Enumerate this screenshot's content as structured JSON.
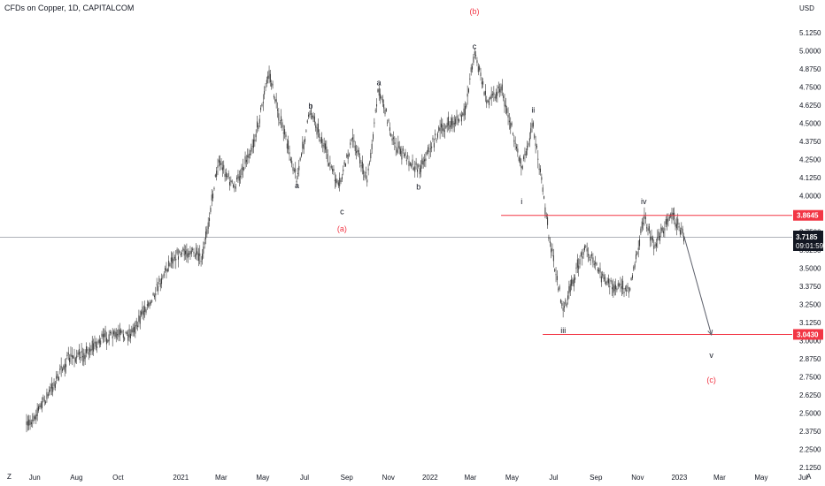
{
  "header": {
    "title": "CFDs on Copper, 1D, CAPITALCOM"
  },
  "price_scale": {
    "currency": "USD",
    "current_price": "3.7185",
    "countdown": "09:01:59",
    "resistance_label": "3.8645",
    "support_label": "3.0430"
  },
  "corner_controls": {
    "left": "Z",
    "right": "A"
  },
  "colors": {
    "candles": "#3a3a3a",
    "level_line": "#f23645",
    "badge": "#f23645",
    "current_badge": "#131722",
    "wave_red": "#f23645",
    "wave_dark": "#131722"
  },
  "chart_data": {
    "type": "candlestick",
    "symbol": "CFDs on Copper",
    "interval": "1D",
    "ylim": [
      2.125,
      5.125
    ],
    "y_ticks": [
      "2.1250",
      "2.2500",
      "2.3750",
      "2.5000",
      "2.6250",
      "2.7500",
      "2.8750",
      "3.0000",
      "3.1250",
      "3.2500",
      "3.3750",
      "3.5000",
      "3.6250",
      "3.7500",
      "4.0000",
      "4.1250",
      "4.2500",
      "4.3750",
      "4.5000",
      "4.6250",
      "4.7500",
      "4.8750",
      "5.0000",
      "5.1250"
    ],
    "x_ticks": [
      {
        "label": "Jun",
        "date": "2020-06-01"
      },
      {
        "label": "Aug",
        "date": "2020-08-01"
      },
      {
        "label": "Oct",
        "date": "2020-10-01"
      },
      {
        "label": "2021",
        "date": "2021-01-01"
      },
      {
        "label": "Mar",
        "date": "2021-03-01"
      },
      {
        "label": "May",
        "date": "2021-05-01"
      },
      {
        "label": "Jul",
        "date": "2021-07-01"
      },
      {
        "label": "Sep",
        "date": "2021-09-01"
      },
      {
        "label": "Nov",
        "date": "2021-11-01"
      },
      {
        "label": "2022",
        "date": "2022-01-01"
      },
      {
        "label": "Mar",
        "date": "2022-03-01"
      },
      {
        "label": "May",
        "date": "2022-05-01"
      },
      {
        "label": "Jul",
        "date": "2022-07-01"
      },
      {
        "label": "Sep",
        "date": "2022-09-01"
      },
      {
        "label": "Nov",
        "date": "2022-11-01"
      },
      {
        "label": "2023",
        "date": "2023-01-01"
      },
      {
        "label": "Mar",
        "date": "2023-03-01"
      },
      {
        "label": "May",
        "date": "2023-05-01"
      },
      {
        "label": "Jul",
        "date": "2023-07-01"
      }
    ],
    "price_path": [
      {
        "date": "2020-05-20",
        "price": 2.4
      },
      {
        "date": "2020-06-20",
        "price": 2.62
      },
      {
        "date": "2020-07-20",
        "price": 2.88
      },
      {
        "date": "2020-08-10",
        "price": 2.9
      },
      {
        "date": "2020-09-10",
        "price": 3.02
      },
      {
        "date": "2020-10-20",
        "price": 3.05
      },
      {
        "date": "2020-11-20",
        "price": 3.3
      },
      {
        "date": "2020-12-20",
        "price": 3.58
      },
      {
        "date": "2021-01-15",
        "price": 3.62
      },
      {
        "date": "2021-02-01",
        "price": 3.55
      },
      {
        "date": "2021-02-25",
        "price": 4.25
      },
      {
        "date": "2021-03-20",
        "price": 4.05
      },
      {
        "date": "2021-04-20",
        "price": 4.4
      },
      {
        "date": "2021-05-10",
        "price": 4.85
      },
      {
        "date": "2021-05-25",
        "price": 4.55
      },
      {
        "date": "2021-06-20",
        "price": 4.12
      },
      {
        "date": "2021-07-10",
        "price": 4.6
      },
      {
        "date": "2021-08-20",
        "price": 4.05
      },
      {
        "date": "2021-09-10",
        "price": 4.4
      },
      {
        "date": "2021-10-01",
        "price": 4.1
      },
      {
        "date": "2021-10-18",
        "price": 4.75
      },
      {
        "date": "2021-11-10",
        "price": 4.35
      },
      {
        "date": "2021-12-15",
        "price": 4.18
      },
      {
        "date": "2022-01-15",
        "price": 4.45
      },
      {
        "date": "2022-02-20",
        "price": 4.55
      },
      {
        "date": "2022-03-07",
        "price": 5.0
      },
      {
        "date": "2022-03-25",
        "price": 4.65
      },
      {
        "date": "2022-04-15",
        "price": 4.75
      },
      {
        "date": "2022-05-15",
        "price": 4.2
      },
      {
        "date": "2022-06-01",
        "price": 4.5
      },
      {
        "date": "2022-06-25",
        "price": 3.7
      },
      {
        "date": "2022-07-15",
        "price": 3.2
      },
      {
        "date": "2022-08-15",
        "price": 3.65
      },
      {
        "date": "2022-09-15",
        "price": 3.4
      },
      {
        "date": "2022-10-20",
        "price": 3.35
      },
      {
        "date": "2022-11-10",
        "price": 3.85
      },
      {
        "date": "2022-11-25",
        "price": 3.65
      },
      {
        "date": "2022-12-20",
        "price": 3.88
      },
      {
        "date": "2023-01-08",
        "price": 3.72
      }
    ],
    "projection": [
      {
        "date": "2023-01-08",
        "price": 3.72
      },
      {
        "date": "2023-02-17",
        "price": 3.04
      }
    ],
    "current_price": 3.7185,
    "horizontal_levels": [
      {
        "price": 3.8645,
        "from": "2022-04-15",
        "label": "3.8645"
      },
      {
        "price": 3.043,
        "from": "2022-06-15",
        "label": "3.0430"
      }
    ],
    "wave_labels": [
      {
        "text": "(a)",
        "date": "2021-08-25",
        "price": 3.77,
        "color": "red"
      },
      {
        "text": "(b)",
        "date": "2022-03-07",
        "price": 5.27,
        "color": "red"
      },
      {
        "text": "(c)",
        "date": "2023-02-17",
        "price": 2.73,
        "color": "red"
      },
      {
        "text": "a",
        "date": "2021-06-20",
        "price": 4.07,
        "color": "dark"
      },
      {
        "text": "b",
        "date": "2021-07-10",
        "price": 4.62,
        "color": "dark"
      },
      {
        "text": "c",
        "date": "2021-08-25",
        "price": 3.89,
        "color": "dark"
      },
      {
        "text": "a",
        "date": "2021-10-18",
        "price": 4.78,
        "color": "dark"
      },
      {
        "text": "b",
        "date": "2021-12-15",
        "price": 4.06,
        "color": "dark"
      },
      {
        "text": "c",
        "date": "2022-03-07",
        "price": 5.03,
        "color": "dark"
      },
      {
        "text": "i",
        "date": "2022-05-15",
        "price": 3.96,
        "color": "dark"
      },
      {
        "text": "ii",
        "date": "2022-06-01",
        "price": 4.59,
        "color": "dark"
      },
      {
        "text": "iii",
        "date": "2022-07-15",
        "price": 3.07,
        "color": "dark"
      },
      {
        "text": "iv",
        "date": "2022-11-10",
        "price": 3.96,
        "color": "dark"
      },
      {
        "text": "v",
        "date": "2023-02-17",
        "price": 2.9,
        "color": "dark"
      }
    ]
  }
}
